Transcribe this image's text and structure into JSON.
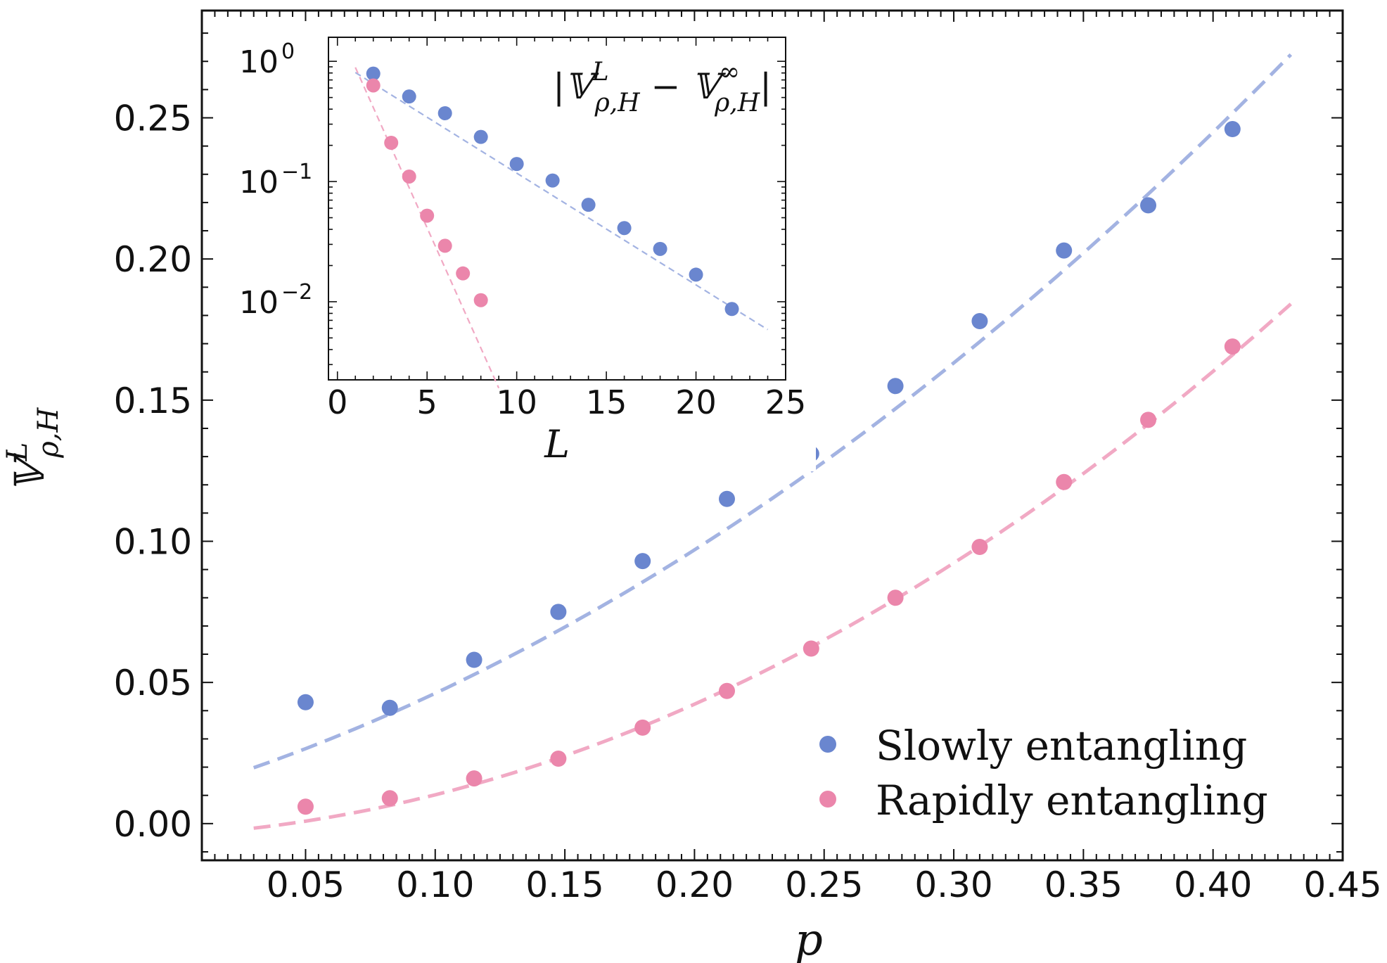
{
  "colors": {
    "slow": "#6a86cf",
    "rapid": "#eb86ab",
    "slow_line": "#a3b3e2",
    "rapid_line": "#f1a9c4",
    "axis": "#111111"
  },
  "chart_data": [
    {
      "id": "main",
      "type": "scatter",
      "xlabel": "p",
      "ylabel": "𝕍",
      "ylabel_sup": "L",
      "ylabel_sub": "ρ,H",
      "xlim": [
        0.01,
        0.45
      ],
      "ylim": [
        -0.013,
        0.288
      ],
      "xticks": [
        0.05,
        0.1,
        0.15,
        0.2,
        0.25,
        0.3,
        0.35,
        0.4,
        0.45
      ],
      "xtick_labels": [
        "0.05",
        "0.10",
        "0.15",
        "0.20",
        "0.25",
        "0.30",
        "0.35",
        "0.40",
        "0.45"
      ],
      "yticks": [
        0.0,
        0.05,
        0.1,
        0.15,
        0.2,
        0.25
      ],
      "ytick_labels": [
        "0.00",
        "0.05",
        "0.10",
        "0.15",
        "0.20",
        "0.25"
      ],
      "legend": {
        "placement": "bottom-right"
      },
      "series": [
        {
          "name": "Slowly entangling",
          "color_key": "slow",
          "x": [
            0.05,
            0.0825,
            0.115,
            0.1475,
            0.18,
            0.2125,
            0.245,
            0.2775,
            0.31,
            0.3425,
            0.375,
            0.4075
          ],
          "y": [
            0.043,
            0.041,
            0.058,
            0.075,
            0.093,
            0.115,
            0.131,
            0.155,
            0.178,
            0.203,
            0.219,
            0.246
          ]
        },
        {
          "name": "Rapidly entangling",
          "color_key": "rapid",
          "x": [
            0.05,
            0.0825,
            0.115,
            0.1475,
            0.18,
            0.2125,
            0.245,
            0.2775,
            0.31,
            0.3425,
            0.375,
            0.4075
          ],
          "y": [
            0.006,
            0.009,
            0.016,
            0.023,
            0.034,
            0.047,
            0.062,
            0.08,
            0.098,
            0.121,
            0.143,
            0.169
          ]
        }
      ],
      "fits": [
        {
          "name": "Slowly entangling fit",
          "color_key": "slow_line",
          "x_range": [
            0.03,
            0.43
          ],
          "a": 0.0108,
          "b": 0.2764,
          "c": 0.772
        },
        {
          "name": "Rapidly entangling fit",
          "color_key": "rapid_line",
          "x_range": [
            0.03,
            0.43
          ],
          "a": -0.004,
          "b": 0.0525,
          "c": 0.895
        }
      ]
    },
    {
      "id": "inset",
      "type": "scatter",
      "yscale": "log",
      "title": "|𝕍",
      "title_sup1": "L",
      "title_sub1": "ρ,H",
      "title_mid": " − 𝕍",
      "title_sup2": "∞",
      "title_sub2": "ρ,H",
      "title_end": "|",
      "xlabel": "L",
      "xlim": [
        -0.5,
        25
      ],
      "ylim_log10": [
        -2.65,
        0.2
      ],
      "xticks": [
        0,
        5,
        10,
        15,
        20,
        25
      ],
      "xtick_labels": [
        "0",
        "5",
        "10",
        "15",
        "20",
        "25"
      ],
      "yticks_log10": [
        0,
        -1,
        -2
      ],
      "ytick_base": "10",
      "ytick_exponents": [
        "0",
        "−1",
        "−2"
      ],
      "series": [
        {
          "name": "Slowly entangling",
          "color_key": "slow",
          "x": [
            2,
            4,
            6,
            8,
            10,
            12,
            14,
            16,
            18,
            20,
            22
          ],
          "y": [
            0.79,
            0.51,
            0.37,
            0.235,
            0.14,
            0.102,
            0.064,
            0.041,
            0.0275,
            0.0168,
            0.0087
          ]
        },
        {
          "name": "Rapidly entangling",
          "color_key": "rapid",
          "x": [
            2,
            3,
            4,
            5,
            6,
            7,
            8
          ],
          "y": [
            0.63,
            0.21,
            0.11,
            0.052,
            0.0292,
            0.0172,
            0.0103
          ]
        }
      ],
      "fits": [
        {
          "name": "Slowly entangling fit",
          "color_key": "slow_line",
          "x_range": [
            1,
            24
          ],
          "log10_intercept": 0.0,
          "log10_slope": -0.093
        },
        {
          "name": "Rapidly entangling fit",
          "color_key": "rapid_line",
          "x_range": [
            1,
            9
          ],
          "log10_intercept": 0.283,
          "log10_slope": -0.3335
        }
      ]
    }
  ]
}
